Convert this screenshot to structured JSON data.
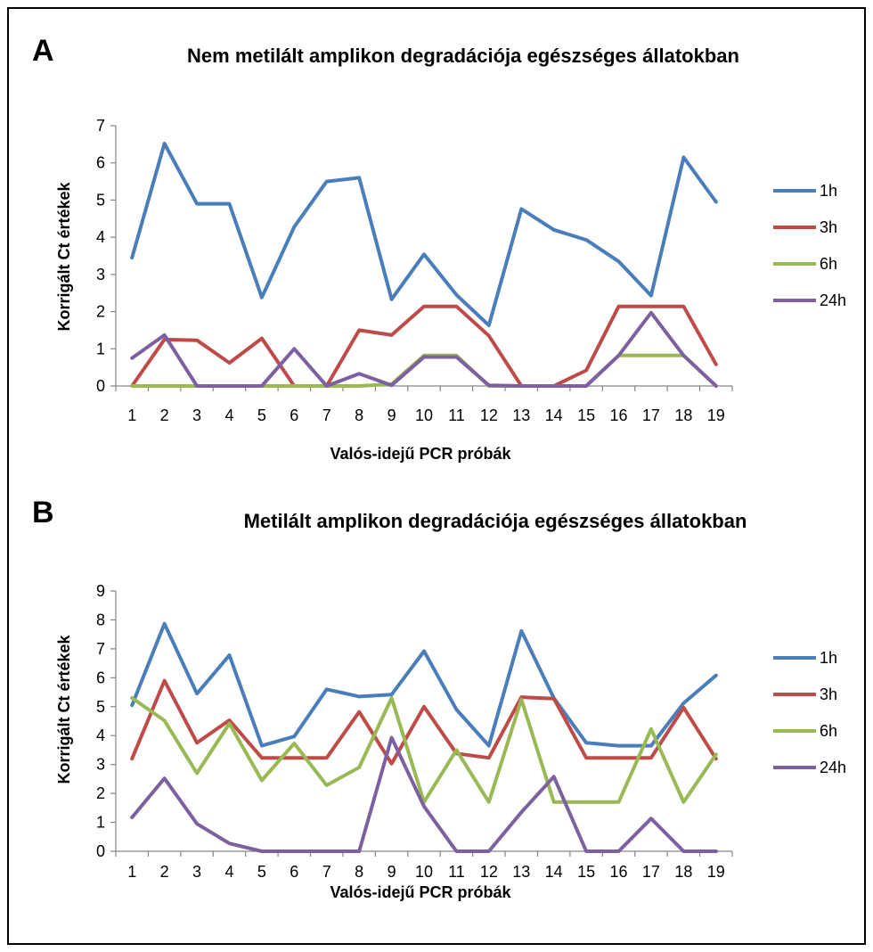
{
  "chart_data": [
    {
      "type": "line",
      "panel": "A",
      "title": "Nem metilált amplikon degradációja  egészséges állatokban",
      "xlabel": "Valós-idejű  PCR próbák",
      "ylabel": "Korrigált Ct értékek",
      "ylim": [
        0,
        7
      ],
      "yticks": [
        0,
        1,
        2,
        3,
        4,
        5,
        6,
        7
      ],
      "categories": [
        "1",
        "2",
        "3",
        "4",
        "5",
        "6",
        "7",
        "8",
        "9",
        "10",
        "11",
        "12",
        "13",
        "14",
        "15",
        "16",
        "17",
        "18",
        "19"
      ],
      "legend_position": "right",
      "series": [
        {
          "name": "1h",
          "color": "#4a7ebb",
          "values": [
            3.45,
            6.52,
            4.9,
            4.9,
            2.38,
            4.28,
            5.5,
            5.6,
            2.33,
            3.54,
            2.45,
            1.63,
            4.76,
            4.2,
            3.93,
            3.35,
            2.43,
            6.15,
            4.95
          ]
        },
        {
          "name": "3h",
          "color": "#be4b48",
          "values": [
            0,
            1.25,
            1.23,
            0.62,
            1.28,
            0,
            0,
            1.5,
            1.37,
            2.14,
            2.14,
            1.35,
            0,
            0,
            0.42,
            2.14,
            2.14,
            2.14,
            0.58
          ]
        },
        {
          "name": "6h",
          "color": "#98b954",
          "values": [
            0,
            0,
            0,
            0,
            0,
            0,
            0,
            0,
            0.05,
            0.82,
            0.82,
            0,
            0,
            0,
            0,
            0.82,
            0.82,
            0.82,
            0
          ]
        },
        {
          "name": "24h",
          "color": "#7d60a0",
          "values": [
            0.75,
            1.37,
            0,
            0,
            0,
            1.0,
            0,
            0.33,
            0.02,
            0.78,
            0.78,
            0.02,
            0,
            0,
            0,
            0.82,
            1.97,
            0.82,
            0
          ]
        }
      ]
    },
    {
      "type": "line",
      "panel": "B",
      "title": "Metilált amplikon degradációja  egészséges állatokban",
      "xlabel": "Valós-idejű  PCR próbák",
      "ylabel": "Korrigált Ct értékek",
      "ylim": [
        0,
        9
      ],
      "yticks": [
        0,
        1,
        2,
        3,
        4,
        5,
        6,
        7,
        8,
        9
      ],
      "categories": [
        "1",
        "2",
        "3",
        "4",
        "5",
        "6",
        "7",
        "8",
        "9",
        "10",
        "11",
        "12",
        "13",
        "14",
        "15",
        "16",
        "17",
        "18",
        "19"
      ],
      "legend_position": "right",
      "series": [
        {
          "name": "1h",
          "color": "#4a7ebb",
          "values": [
            5.05,
            7.87,
            5.45,
            6.78,
            3.65,
            3.97,
            5.6,
            5.35,
            5.42,
            6.92,
            4.9,
            3.65,
            7.62,
            5.3,
            3.75,
            3.65,
            3.65,
            5.12,
            6.08
          ]
        },
        {
          "name": "3h",
          "color": "#be4b48",
          "values": [
            3.2,
            5.9,
            3.75,
            4.53,
            3.23,
            3.23,
            3.23,
            4.82,
            3.03,
            5.0,
            3.38,
            3.23,
            5.33,
            5.28,
            3.23,
            3.23,
            3.23,
            4.97,
            3.2
          ]
        },
        {
          "name": "6h",
          "color": "#98b954",
          "values": [
            5.3,
            4.52,
            2.7,
            4.42,
            2.45,
            3.73,
            2.28,
            2.9,
            5.3,
            1.7,
            3.5,
            1.7,
            5.25,
            1.7,
            1.7,
            1.7,
            4.23,
            1.7,
            3.35
          ]
        },
        {
          "name": "24h",
          "color": "#7d60a0",
          "values": [
            1.17,
            2.52,
            0.95,
            0.27,
            0,
            0,
            0,
            0,
            3.93,
            1.55,
            0,
            0,
            1.35,
            2.58,
            0,
            0,
            1.13,
            0,
            0
          ]
        }
      ]
    }
  ]
}
